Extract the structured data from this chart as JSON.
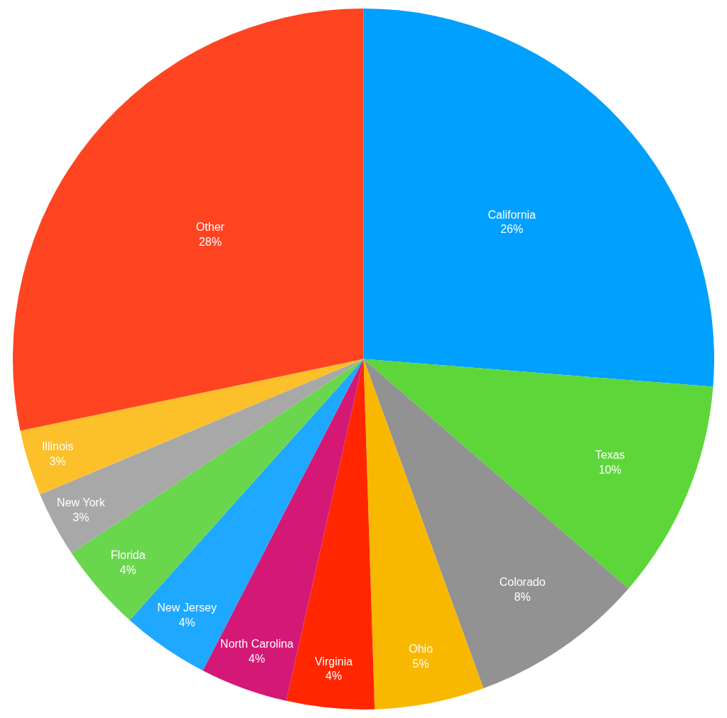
{
  "chart_data": {
    "type": "pie",
    "categories": [
      "California",
      "Texas",
      "Colorado",
      "Ohio",
      "Virginia",
      "North Carolina",
      "New Jersey",
      "Florida",
      "New York",
      "Illinois",
      "Other"
    ],
    "values": [
      26,
      10,
      8,
      5,
      4,
      4,
      4,
      4,
      3,
      3,
      28
    ],
    "value_labels": [
      "26%",
      "10%",
      "8%",
      "5%",
      "4%",
      "4%",
      "4%",
      "4%",
      "3%",
      "3%",
      "28%"
    ],
    "colors": [
      "#00a0ff",
      "#5dd63a",
      "#929292",
      "#f9b800",
      "#ff2600",
      "#d41876",
      "#1ea8ff",
      "#6ad64e",
      "#a8a8a8",
      "#fbc02a",
      "#ff4422"
    ],
    "legend": false
  }
}
